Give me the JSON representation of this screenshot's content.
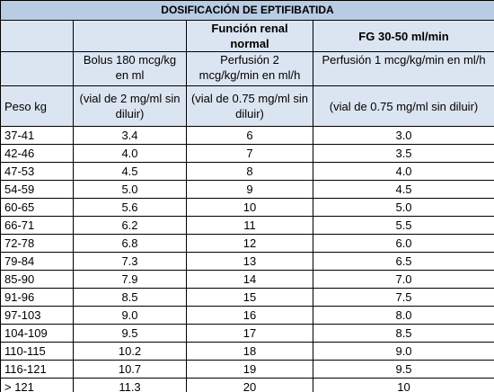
{
  "title": "DOSIFICACIÓN DE EPTIFIBATIDA",
  "group_headers": [
    "Función renal normal",
    "FG 30-50 ml/min"
  ],
  "sub_headers": [
    "Bolus 180 mcg/kg en ml",
    "Perfusión 2 mcg/kg/min en ml/h",
    "Perfusión 1 mcg/kg/min en ml/h"
  ],
  "unit_headers": [
    "Peso kg",
    "(vial de 2 mg/ml sin diluir)",
    "(vial de 0.75 mg/ml sin diluir)",
    "(vial de 0.75 mg/ml sin diluir)"
  ],
  "rows": [
    [
      "37-41",
      "3.4",
      "6",
      "3.0"
    ],
    [
      "42-46",
      "4.0",
      "7",
      "3.5"
    ],
    [
      "47-53",
      "4.5",
      "8",
      "4.0"
    ],
    [
      "54-59",
      "5.0",
      "9",
      "4.5"
    ],
    [
      "60-65",
      "5.6",
      "10",
      "5.0"
    ],
    [
      "66-71",
      "6.2",
      "11",
      "5.5"
    ],
    [
      "72-78",
      "6.8",
      "12",
      "6.0"
    ],
    [
      "79-84",
      "7.3",
      "13",
      "6.5"
    ],
    [
      "85-90",
      "7.9",
      "14",
      "7.0"
    ],
    [
      "91-96",
      "8.5",
      "15",
      "7.5"
    ],
    [
      "97-103",
      "9.0",
      "16",
      "8.0"
    ],
    [
      "104-109",
      "9.5",
      "17",
      "8.5"
    ],
    [
      "110-115",
      "10.2",
      "18",
      "9.0"
    ],
    [
      "116-121",
      "10.7",
      "19",
      "9.5"
    ],
    [
      "> 121",
      "11.3",
      "20",
      "10"
    ]
  ]
}
